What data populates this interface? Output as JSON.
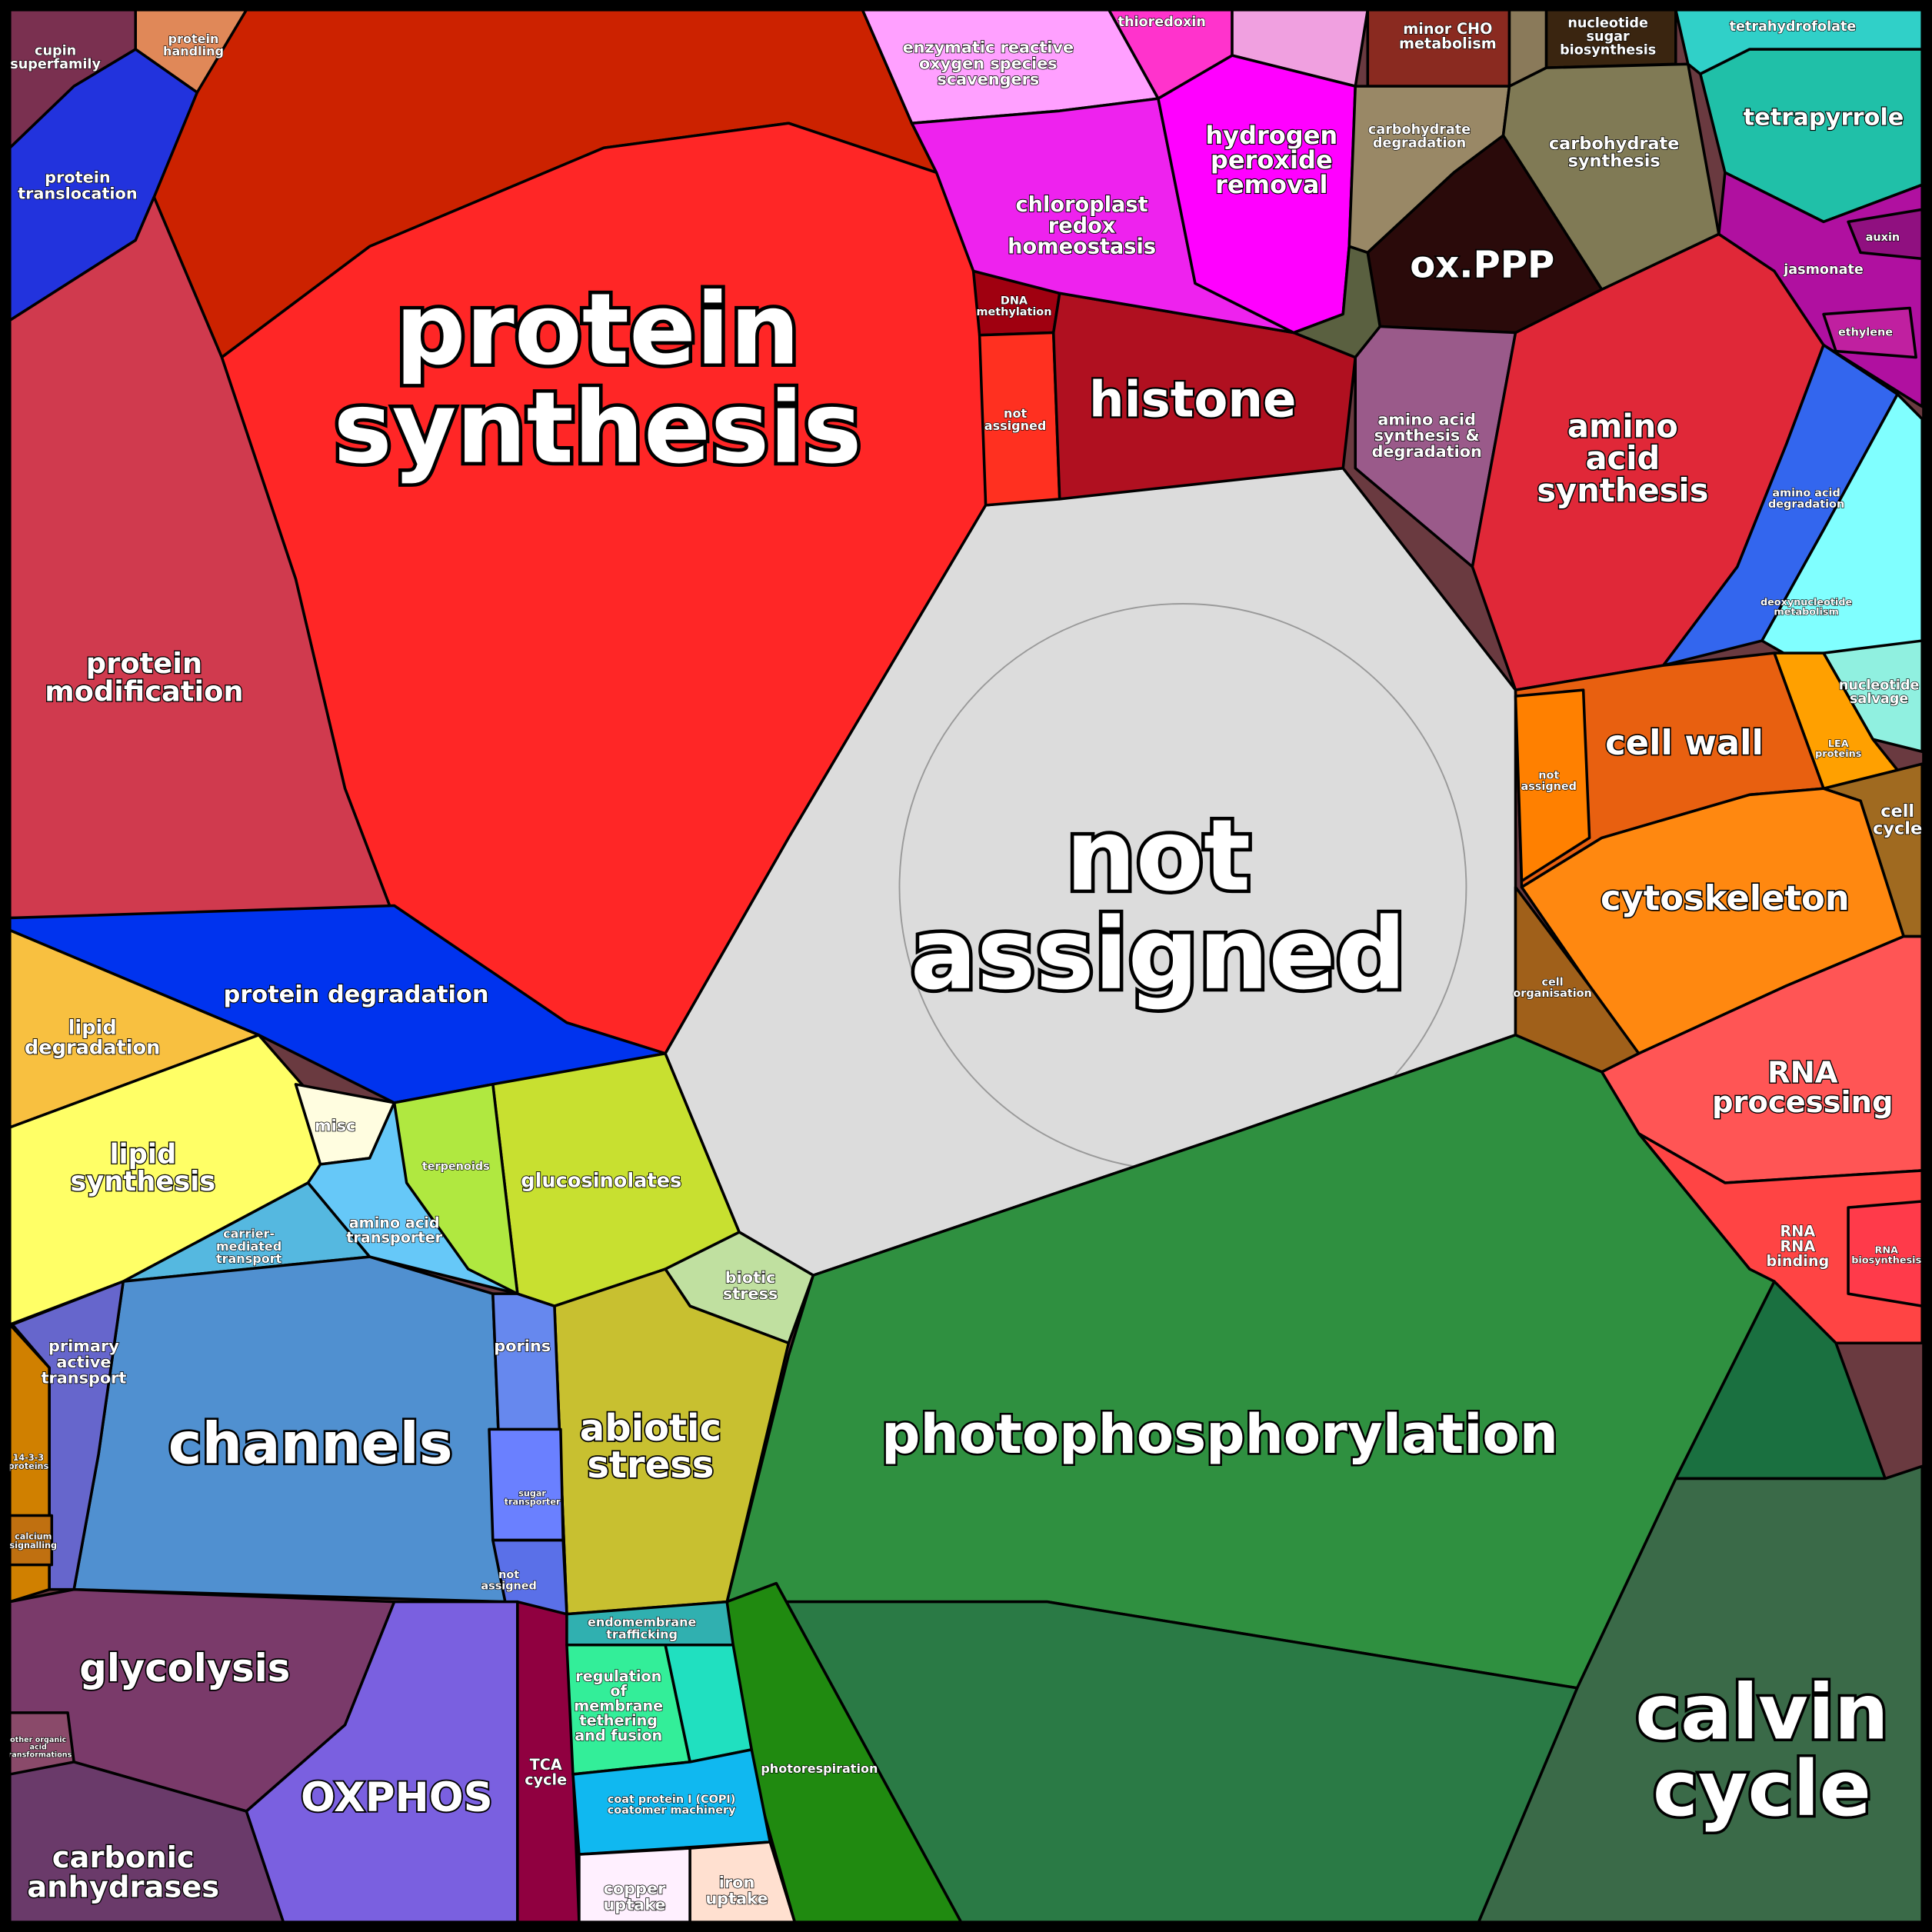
{
  "regions": [
    {
      "color": "#cc2200"
    },
    {
      "color": "#ff2626",
      "label": [
        "protein",
        "synthesis"
      ]
    },
    {
      "color": "#7a3050",
      "label": [
        "cupin",
        "superfamily"
      ]
    },
    {
      "color": "#e08858",
      "label": [
        "protein",
        "handling"
      ]
    },
    {
      "color": "#2233dd",
      "label": [
        "protein",
        "translocation"
      ]
    },
    {
      "color": "#d03a4e",
      "label": [
        "protein",
        "modification"
      ]
    },
    {
      "color": "#0033ee",
      "label": [
        "protein degradation"
      ]
    },
    {
      "color": "#f8c040",
      "label": [
        "lipid",
        "degradation"
      ]
    },
    {
      "color": "#ffff66",
      "label": [
        "lipid",
        "synthesis"
      ]
    },
    {
      "color": "#fffde0",
      "label": [
        "misc"
      ]
    },
    {
      "color": "#66c8f8",
      "label": [
        "amino acid",
        "transporter"
      ]
    },
    {
      "color": "#55b8e0",
      "label": [
        "carrier-",
        "mediated",
        "transport"
      ]
    },
    {
      "color": "#c8e030",
      "label": [
        "glucosinolates"
      ]
    },
    {
      "color": "#b0e840",
      "label": [
        "terpenoids"
      ]
    },
    {
      "color": "#dcdcdc",
      "label": [
        "not",
        "assigned"
      ]
    },
    {
      "color": "#a00010",
      "label": [
        "DNA",
        "methylation"
      ]
    },
    {
      "color": "#ff3020",
      "label": [
        "not",
        "assigned"
      ]
    },
    {
      "color": "#b01020",
      "label": [
        "histone"
      ]
    },
    {
      "color": "#ffa0ff",
      "label": [
        "enzymatic reactive",
        "oxygen species",
        "scavengers"
      ]
    },
    {
      "color": "#ff33cc",
      "label": [
        "thioredoxin"
      ]
    },
    {
      "color": "#f0a0e0"
    },
    {
      "color": "#ee22ee",
      "label": [
        "chloroplast",
        "redox",
        "homeostasis"
      ]
    },
    {
      "color": "#ff00ff",
      "label": [
        "hydrogen",
        "peroxide",
        "removal"
      ]
    },
    {
      "color": "#8a2a20",
      "label": [
        "minor CHO",
        "metabolism"
      ]
    },
    {
      "color": "#8a7a5a"
    },
    {
      "color": "#3a2510",
      "label": [
        "nucleotide",
        "sugar",
        "biosynthesis"
      ]
    },
    {
      "color": "#998866",
      "label": [
        "carbohydrate",
        "degradation"
      ]
    },
    {
      "color": "#807a55",
      "label": [
        "carbohydrate",
        "synthesis"
      ]
    },
    {
      "color": "#2a0a0a",
      "label": [
        "ox.PPP"
      ]
    },
    {
      "color": "#5a6040"
    },
    {
      "color": "#9a5a8a",
      "label": [
        "amino acid",
        "synthesis &",
        "degradation"
      ]
    },
    {
      "color": "#e02838",
      "label": [
        "amino",
        "acid",
        "synthesis"
      ]
    },
    {
      "color": "#30d0c8",
      "label": [
        "tetrahydrofolate"
      ]
    },
    {
      "color": "#20c0a8",
      "label": [
        "tetrapyrrole"
      ]
    },
    {
      "color": "#b010a0",
      "label": [
        "jasmonate"
      ]
    },
    {
      "color": "#901080",
      "label": [
        "auxin"
      ]
    },
    {
      "color": "#c020a0",
      "label": [
        "ethylene"
      ]
    },
    {
      "color": "#3366ee",
      "label": [
        "amino acid",
        "degradation"
      ]
    },
    {
      "color": "#80ffff",
      "label": [
        "deoxynucleotide",
        "metabolism"
      ]
    },
    {
      "color": "#90f0e0",
      "label": [
        "nucleotide",
        "salvage"
      ]
    },
    {
      "color": "#ffa000",
      "label": [
        "LEA",
        "proteins"
      ]
    },
    {
      "color": "#e86010",
      "label": [
        "cell wall"
      ]
    },
    {
      "color": "#ff8000",
      "label": [
        "not",
        "assigned"
      ]
    },
    {
      "color": "#a06a20",
      "label": [
        "cell",
        "cycle"
      ]
    },
    {
      "color": "#ff8810",
      "label": [
        "cytoskeleton"
      ]
    },
    {
      "color": "#a0601a",
      "label": [
        "cell",
        "organisation"
      ]
    },
    {
      "color": "#ff5555",
      "label": [
        "RNA",
        "processing"
      ]
    },
    {
      "color": "#ff4444",
      "label": [
        "RNA",
        "RNA",
        "binding"
      ]
    },
    {
      "color": "#ff3a4a",
      "label": [
        "RNA",
        "biosynthesis"
      ]
    },
    {
      "color": "#1a7040"
    },
    {
      "color": "#3a6a48",
      "label": [
        "calvin",
        "cycle"
      ]
    },
    {
      "color": "#2f9040",
      "label": [
        "photophosphorylation"
      ]
    },
    {
      "color": "#2a7a45"
    },
    {
      "color": "#208a10",
      "label": [
        "photorespiration"
      ]
    },
    {
      "color": "#c0e0a0",
      "label": [
        "biotic",
        "stress"
      ]
    },
    {
      "color": "#c8c030",
      "label": [
        "abiotic",
        "stress"
      ]
    },
    {
      "color": "#5090d0",
      "label": [
        "channels"
      ]
    },
    {
      "color": "#6688ee",
      "label": [
        "porins"
      ]
    },
    {
      "color": "#6a80ff",
      "label": [
        "sugar",
        "transporter"
      ]
    },
    {
      "color": "#5a70e8",
      "label": [
        "not",
        "assigned"
      ]
    },
    {
      "color": "#6666cc",
      "label": [
        "primary",
        "active",
        "transport"
      ]
    },
    {
      "color": "#d08000",
      "label": [
        "14-3-3",
        "proteins"
      ]
    },
    {
      "color": "#c07010",
      "label": [
        "calcium",
        "signalling"
      ]
    },
    {
      "color": "#7a3a6a",
      "label": [
        "glycolysis"
      ]
    },
    {
      "color": "#8a4a6a",
      "label": [
        "other organic",
        "acid",
        "transformations"
      ]
    },
    {
      "color": "#6a3a6a",
      "label": [
        "carbonic",
        "anhydrases"
      ]
    },
    {
      "color": "#7a60e0",
      "label": [
        "OXPHOS"
      ]
    },
    {
      "color": "#900040",
      "label": [
        "TCA",
        "cycle"
      ]
    },
    {
      "color": "#30b0b0",
      "label": [
        "endomembrane",
        "trafficking"
      ]
    },
    {
      "color": "#33ee99",
      "label": [
        "regulation",
        "of",
        "membrane",
        "tethering",
        "and fusion"
      ]
    },
    {
      "color": "#20e0c0"
    },
    {
      "color": "#10b8f0",
      "label": [
        "coat protein I (COPI)",
        "coatomer machinery"
      ]
    },
    {
      "color": "#fff0ff",
      "label": [
        "copper",
        "uptake"
      ]
    },
    {
      "color": "#ffe0d0",
      "label": [
        "iron",
        "uptake"
      ]
    }
  ]
}
